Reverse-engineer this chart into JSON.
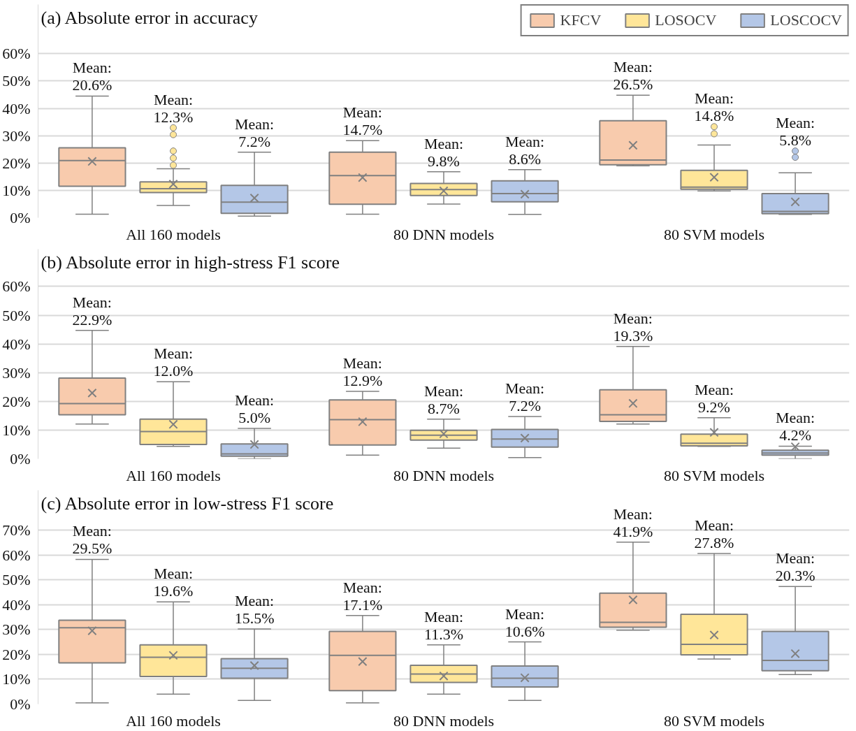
{
  "chart_data": [
    {
      "type": "box",
      "title": "(a) Absolute error in accuracy",
      "categories": [
        "All 160 models",
        "80 DNN models",
        "80 SVM models"
      ],
      "ylim": [
        0,
        78
      ],
      "yticks": [
        {
          "value": 0,
          "label": "0%"
        },
        {
          "value": 10,
          "label": "10%"
        },
        {
          "value": 20,
          "label": "20%"
        },
        {
          "value": 30,
          "label": "30%"
        },
        {
          "value": 40,
          "label": "40%"
        },
        {
          "value": 50,
          "label": "50%"
        },
        {
          "value": 60,
          "label": "60%"
        }
      ],
      "grid": "y",
      "legend": "top right",
      "series": [
        {
          "name": "KFCV",
          "color": "#f8cbad",
          "boxes": [
            {
              "low": 1.3,
              "q1": 11.5,
              "median": 20.9,
              "q3": 25.6,
              "high": 44.5,
              "mean": 20.6
            },
            {
              "low": 1.3,
              "q1": 4.9,
              "median": 15.4,
              "q3": 24.0,
              "high": 28.2,
              "mean": 14.7
            },
            {
              "low": 19.0,
              "q1": 19.4,
              "median": 21.1,
              "q3": 35.5,
              "high": 44.8,
              "mean": 26.5
            }
          ]
        },
        {
          "name": "LOSOCV",
          "color": "#ffe699",
          "boxes": [
            {
              "low": 4.5,
              "q1": 9.2,
              "median": 10.6,
              "q3": 13.1,
              "high": 17.9,
              "mean": 12.3,
              "outliers": [
                19.2,
                21.8,
                24.4,
                30.4,
                32.9
              ]
            },
            {
              "low": 5.0,
              "q1": 8.1,
              "median": 10.3,
              "q3": 12.5,
              "high": 16.8,
              "mean": 9.8
            },
            {
              "low": 9.8,
              "q1": 10.4,
              "median": 11.2,
              "q3": 17.3,
              "high": 26.6,
              "mean": 14.8,
              "outliers": [
                30.7,
                33.3
              ]
            }
          ]
        },
        {
          "name": "LOSCOCV",
          "color": "#b4c7e7",
          "boxes": [
            {
              "low": 0.6,
              "q1": 1.6,
              "median": 5.7,
              "q3": 11.8,
              "high": 24.0,
              "mean": 7.2
            },
            {
              "low": 1.2,
              "q1": 5.8,
              "median": 8.8,
              "q3": 13.5,
              "high": 17.6,
              "mean": 8.6
            },
            {
              "low": 1.2,
              "q1": 1.5,
              "median": 2.3,
              "q3": 8.8,
              "high": 16.4,
              "mean": 5.8,
              "outliers": [
                22.1,
                24.4
              ]
            }
          ]
        }
      ],
      "annotations": [
        "Mean:\n20.6%",
        "Mean:\n12.3%",
        "Mean:\n7.2%",
        "Mean:\n14.7%",
        "Mean:\n9.8%",
        "Mean:\n8.6%",
        "Mean:\n26.5%",
        "Mean:\n14.8%",
        "Mean:\n5.8%"
      ]
    },
    {
      "type": "box",
      "title": "(b) Absolute error in high-stress F1 score",
      "categories": [
        "All 160 models",
        "80 DNN models",
        "80 SVM models"
      ],
      "ylim": [
        0,
        73
      ],
      "yticks": [
        {
          "value": 0,
          "label": "0%"
        },
        {
          "value": 10,
          "label": "10%"
        },
        {
          "value": 20,
          "label": "20%"
        },
        {
          "value": 30,
          "label": "30%"
        },
        {
          "value": 40,
          "label": "40%"
        },
        {
          "value": 50,
          "label": "50%"
        },
        {
          "value": 60,
          "label": "60%"
        }
      ],
      "grid": "y",
      "series": [
        {
          "color": "#f8cbad",
          "boxes": [
            {
              "low": 12.1,
              "q1": 15.3,
              "median": 19.2,
              "q3": 28.1,
              "high": 44.7,
              "mean": 22.9
            },
            {
              "low": 1.3,
              "q1": 4.8,
              "median": 13.6,
              "q3": 20.5,
              "high": 23.5,
              "mean": 12.9
            },
            {
              "low": 12.1,
              "q1": 13.0,
              "median": 15.3,
              "q3": 24.0,
              "high": 39.1,
              "mean": 19.3
            }
          ]
        },
        {
          "color": "#ffe699",
          "boxes": [
            {
              "low": 4.3,
              "q1": 5.0,
              "median": 9.5,
              "q3": 13.8,
              "high": 26.8,
              "mean": 12.0
            },
            {
              "low": 3.7,
              "q1": 6.5,
              "median": 8.2,
              "q3": 9.9,
              "high": 13.8,
              "mean": 8.7
            },
            {
              "low": 4.3,
              "q1": 4.5,
              "median": 5.4,
              "q3": 8.6,
              "high": 14.3,
              "mean": 9.2
            }
          ]
        },
        {
          "color": "#b4c7e7",
          "boxes": [
            {
              "low": 0,
              "q1": 0.9,
              "median": 1.7,
              "q3": 5.2,
              "high": 10.6,
              "mean": 5.0
            },
            {
              "low": 0.4,
              "q1": 4.1,
              "median": 6.9,
              "q3": 10.2,
              "high": 14.7,
              "mean": 7.2
            },
            {
              "low": 0,
              "q1": 1.3,
              "median": 2.0,
              "q3": 3.0,
              "high": 4.4,
              "mean": 4.2
            }
          ]
        }
      ],
      "annotations": [
        "Mean:\n22.9%",
        "Mean:\n12.0%",
        "Mean:\n5.0%",
        "Mean:\n12.9%",
        "Mean:\n8.7%",
        "Mean:\n7.2%",
        "Mean:\n19.3%",
        "Mean:\n9.2%",
        "Mean:\n4.2%"
      ]
    },
    {
      "type": "box",
      "title": "(c) Absolute error in low-stress F1 score",
      "categories": [
        "All 160 models",
        "80 DNN models",
        "80 SVM models"
      ],
      "ylim": [
        0,
        86
      ],
      "yticks": [
        {
          "value": 0,
          "label": "0%"
        },
        {
          "value": 10,
          "label": "10%"
        },
        {
          "value": 20,
          "label": "20%"
        },
        {
          "value": 30,
          "label": "30%"
        },
        {
          "value": 40,
          "label": "40%"
        },
        {
          "value": 50,
          "label": "50%"
        },
        {
          "value": 60,
          "label": "60%"
        },
        {
          "value": 70,
          "label": "70%"
        }
      ],
      "grid": "y",
      "series": [
        {
          "color": "#f8cbad",
          "boxes": [
            {
              "low": 0.5,
              "q1": 16.6,
              "median": 30.7,
              "q3": 33.7,
              "high": 58.2,
              "mean": 29.5
            },
            {
              "low": 0.5,
              "q1": 5.4,
              "median": 19.6,
              "q3": 29.2,
              "high": 35.6,
              "mean": 17.1
            },
            {
              "low": 29.7,
              "q1": 30.9,
              "median": 32.9,
              "q3": 44.6,
              "high": 65.1,
              "mean": 41.9
            }
          ]
        },
        {
          "color": "#ffe699",
          "boxes": [
            {
              "low": 4.0,
              "q1": 11.1,
              "median": 18.8,
              "q3": 23.8,
              "high": 41.1,
              "mean": 19.6
            },
            {
              "low": 4.0,
              "q1": 8.7,
              "median": 12.1,
              "q3": 15.6,
              "high": 23.8,
              "mean": 11.3
            },
            {
              "low": 18.1,
              "q1": 19.8,
              "median": 24.0,
              "q3": 36.1,
              "high": 60.6,
              "mean": 27.8
            }
          ]
        },
        {
          "color": "#b4c7e7",
          "boxes": [
            {
              "low": 1.5,
              "q1": 10.4,
              "median": 14.4,
              "q3": 18.3,
              "high": 30.2,
              "mean": 15.5
            },
            {
              "low": 1.5,
              "q1": 6.9,
              "median": 10.4,
              "q3": 15.3,
              "high": 25.0,
              "mean": 10.6
            },
            {
              "low": 11.9,
              "q1": 13.4,
              "median": 17.6,
              "q3": 29.2,
              "high": 47.3,
              "mean": 20.3
            }
          ]
        }
      ],
      "annotations": [
        "Mean:\n29.5%",
        "Mean:\n19.6%",
        "Mean:\n15.5%",
        "Mean:\n17.1%",
        "Mean:\n11.3%",
        "Mean:\n10.6%",
        "Mean:\n41.9%",
        "Mean:\n27.8%",
        "Mean:\n20.3%"
      ]
    }
  ]
}
